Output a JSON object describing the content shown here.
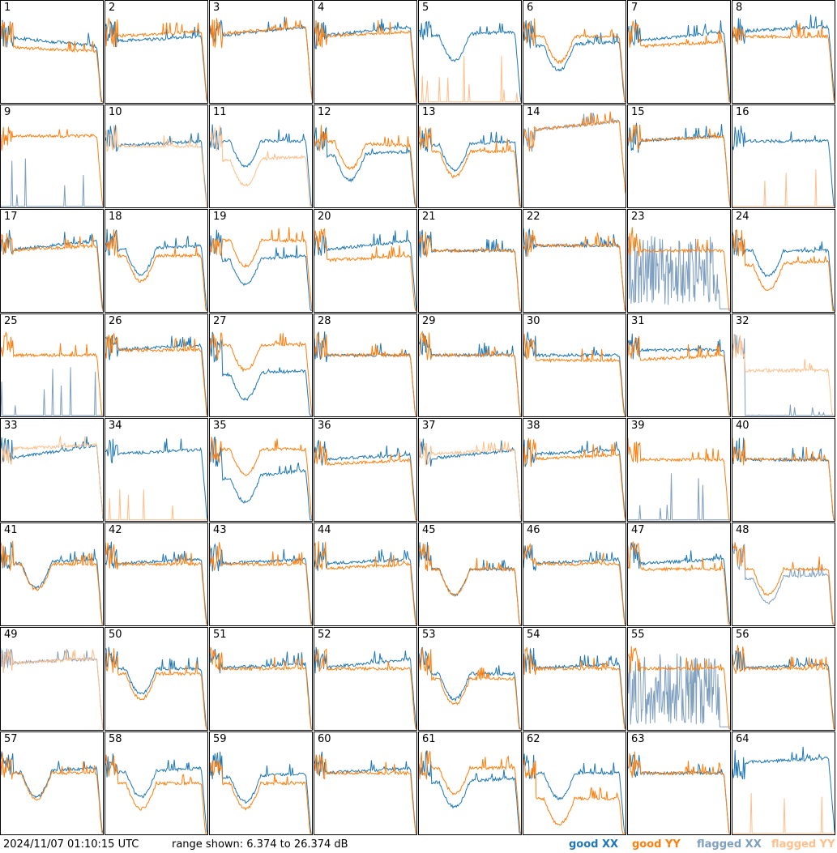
{
  "footer": {
    "timestamp": "2024/11/07 01:10:15 UTC",
    "range_text": "range shown: 6.374 to 26.374 dB"
  },
  "legend": [
    {
      "label": "good XX",
      "color": "#1f77b4"
    },
    {
      "label": "good YY",
      "color": "#ff7f0e"
    },
    {
      "label": "flagged XX",
      "color": "#7f9fbf"
    },
    {
      "label": "flagged YY",
      "color": "#ffbf8a"
    }
  ],
  "chart_data": {
    "type": "line",
    "ylim_db": [
      6.374,
      26.374
    ],
    "panels": [
      {
        "n": "1",
        "xx": "good",
        "yy": "good",
        "shape": "flat",
        "xxLevel": [
          0.35,
          0.45
        ],
        "yyLevel": [
          0.45,
          0.5
        ]
      },
      {
        "n": "2",
        "xx": "good",
        "yy": "good",
        "shape": "flat",
        "xxLevel": [
          0.4,
          0.35
        ],
        "yyLevel": [
          0.35,
          0.3
        ]
      },
      {
        "n": "3",
        "xx": "good",
        "yy": "good",
        "shape": "flat",
        "xxLevel": [
          0.35,
          0.25
        ],
        "yyLevel": [
          0.33,
          0.25
        ]
      },
      {
        "n": "4",
        "xx": "good",
        "yy": "good",
        "shape": "flat",
        "xxLevel": [
          0.35,
          0.25
        ],
        "yyLevel": [
          0.35,
          0.3
        ]
      },
      {
        "n": "5",
        "xx": "good",
        "yy": "flagged",
        "shape": "dip",
        "xxLevel": [
          0.35,
          0.3
        ],
        "yyLevel": [
          1.0,
          1.0
        ],
        "yySpike": true
      },
      {
        "n": "6",
        "xx": "good",
        "yy": "good",
        "shape": "dip",
        "xxLevel": [
          0.45,
          0.4
        ],
        "yyLevel": [
          0.35,
          0.35
        ]
      },
      {
        "n": "7",
        "xx": "good",
        "yy": "good",
        "shape": "flat",
        "xxLevel": [
          0.4,
          0.3
        ],
        "yyLevel": [
          0.45,
          0.4
        ]
      },
      {
        "n": "8",
        "xx": "good",
        "yy": "good",
        "shape": "flat",
        "xxLevel": [
          0.3,
          0.25
        ],
        "yyLevel": [
          0.35,
          0.35
        ]
      },
      {
        "n": "9",
        "xx": "flagged",
        "yy": "good",
        "shape": "flat",
        "xxLevel": [
          0.95,
          0.95
        ],
        "yyLevel": [
          0.3,
          0.3
        ],
        "xxSpike": true
      },
      {
        "n": "10",
        "xx": "good",
        "yy": "flagged",
        "shape": "flat",
        "xxLevel": [
          0.4,
          0.35
        ],
        "yyLevel": [
          0.4,
          0.4
        ]
      },
      {
        "n": "11",
        "xx": "good",
        "yy": "flagged",
        "shape": "dip",
        "xxLevel": [
          0.35,
          0.35
        ],
        "yyLevel": [
          0.55,
          0.5
        ]
      },
      {
        "n": "12",
        "xx": "good",
        "yy": "good",
        "shape": "dip",
        "xxLevel": [
          0.5,
          0.45
        ],
        "yyLevel": [
          0.35,
          0.4
        ]
      },
      {
        "n": "13",
        "xx": "good",
        "yy": "good",
        "shape": "dip",
        "xxLevel": [
          0.4,
          0.35
        ],
        "yyLevel": [
          0.45,
          0.45
        ]
      },
      {
        "n": "14",
        "xx": "flagged",
        "yy": "good",
        "shape": "flat",
        "xxLevel": [
          0.25,
          0.15
        ],
        "yyLevel": [
          0.25,
          0.15
        ]
      },
      {
        "n": "15",
        "xx": "good",
        "yy": "good",
        "shape": "flat",
        "xxLevel": [
          0.35,
          0.3
        ],
        "yyLevel": [
          0.35,
          0.3
        ]
      },
      {
        "n": "16",
        "xx": "good",
        "yy": "flagged",
        "shape": "flat",
        "xxLevel": [
          0.35,
          0.35
        ],
        "yyLevel": [
          1.0,
          1.0
        ],
        "yySpike": true
      },
      {
        "n": "17",
        "xx": "good",
        "yy": "good",
        "shape": "flat",
        "xxLevel": [
          0.4,
          0.3
        ],
        "yyLevel": [
          0.4,
          0.35
        ]
      },
      {
        "n": "18",
        "xx": "good",
        "yy": "good",
        "shape": "dip",
        "xxLevel": [
          0.4,
          0.35
        ],
        "yyLevel": [
          0.45,
          0.45
        ]
      },
      {
        "n": "19",
        "xx": "good",
        "yy": "good",
        "shape": "dip",
        "xxLevel": [
          0.5,
          0.45
        ],
        "yyLevel": [
          0.3,
          0.3
        ]
      },
      {
        "n": "20",
        "xx": "good",
        "yy": "good",
        "shape": "flat",
        "xxLevel": [
          0.4,
          0.3
        ],
        "yyLevel": [
          0.5,
          0.45
        ]
      },
      {
        "n": "21",
        "xx": "good",
        "yy": "good",
        "shape": "flat",
        "xxLevel": [
          0.4,
          0.4
        ],
        "yyLevel": [
          0.4,
          0.4
        ]
      },
      {
        "n": "22",
        "xx": "good",
        "yy": "good",
        "shape": "flat",
        "xxLevel": [
          0.35,
          0.35
        ],
        "yyLevel": [
          0.35,
          0.35
        ]
      },
      {
        "n": "23",
        "xx": "flagged",
        "yy": "good",
        "shape": "flat",
        "xxLevel": [
          0.85,
          0.9
        ],
        "yyLevel": [
          0.4,
          0.4
        ],
        "xxNoise": true
      },
      {
        "n": "24",
        "xx": "good",
        "yy": "good",
        "shape": "dip",
        "xxLevel": [
          0.4,
          0.4
        ],
        "yyLevel": [
          0.55,
          0.5
        ]
      },
      {
        "n": "25",
        "xx": "flagged",
        "yy": "good",
        "shape": "flat",
        "xxLevel": [
          1.0,
          1.0
        ],
        "yyLevel": [
          0.4,
          0.4
        ],
        "xxSpike": true
      },
      {
        "n": "26",
        "xx": "good",
        "yy": "good",
        "shape": "flat",
        "xxLevel": [
          0.35,
          0.3
        ],
        "yyLevel": [
          0.35,
          0.35
        ]
      },
      {
        "n": "27",
        "xx": "good",
        "yy": "good",
        "shape": "dip",
        "xxLevel": [
          0.6,
          0.55
        ],
        "yyLevel": [
          0.3,
          0.3
        ]
      },
      {
        "n": "28",
        "xx": "good",
        "yy": "good",
        "shape": "flat",
        "xxLevel": [
          0.4,
          0.4
        ],
        "yyLevel": [
          0.4,
          0.4
        ]
      },
      {
        "n": "29",
        "xx": "good",
        "yy": "good",
        "shape": "flat",
        "xxLevel": [
          0.4,
          0.4
        ],
        "yyLevel": [
          0.4,
          0.4
        ]
      },
      {
        "n": "30",
        "xx": "good",
        "yy": "good",
        "shape": "flat",
        "xxLevel": [
          0.4,
          0.4
        ],
        "yyLevel": [
          0.45,
          0.45
        ]
      },
      {
        "n": "31",
        "xx": "good",
        "yy": "good",
        "shape": "flat",
        "xxLevel": [
          0.35,
          0.35
        ],
        "yyLevel": [
          0.45,
          0.4
        ]
      },
      {
        "n": "32",
        "xx": "flagged",
        "yy": "flagged",
        "shape": "flat",
        "xxLevel": [
          1.0,
          1.0
        ],
        "yyLevel": [
          0.55,
          0.55
        ]
      },
      {
        "n": "33",
        "xx": "good",
        "yy": "flagged",
        "shape": "flat",
        "xxLevel": [
          0.4,
          0.25
        ],
        "yyLevel": [
          0.3,
          0.25
        ]
      },
      {
        "n": "34",
        "xx": "good",
        "yy": "flagged",
        "shape": "flat",
        "xxLevel": [
          0.35,
          0.3
        ],
        "yyLevel": [
          0.95,
          0.98
        ],
        "yySpike": true
      },
      {
        "n": "35",
        "xx": "good",
        "yy": "good",
        "shape": "dip",
        "xxLevel": [
          0.6,
          0.5
        ],
        "yyLevel": [
          0.3,
          0.3
        ]
      },
      {
        "n": "36",
        "xx": "good",
        "yy": "good",
        "shape": "flat",
        "xxLevel": [
          0.4,
          0.35
        ],
        "yyLevel": [
          0.45,
          0.4
        ]
      },
      {
        "n": "37",
        "xx": "good",
        "yy": "flagged",
        "shape": "flat",
        "xxLevel": [
          0.4,
          0.3
        ],
        "yyLevel": [
          0.35,
          0.3
        ]
      },
      {
        "n": "38",
        "xx": "good",
        "yy": "good",
        "shape": "flat",
        "xxLevel": [
          0.35,
          0.3
        ],
        "yyLevel": [
          0.4,
          0.35
        ]
      },
      {
        "n": "39",
        "xx": "flagged",
        "yy": "good",
        "shape": "flat",
        "xxLevel": [
          1.0,
          1.0
        ],
        "yyLevel": [
          0.4,
          0.4
        ],
        "xxSpike": true
      },
      {
        "n": "40",
        "xx": "good",
        "yy": "good",
        "shape": "flat",
        "xxLevel": [
          0.4,
          0.4
        ],
        "yyLevel": [
          0.4,
          0.4
        ]
      },
      {
        "n": "41",
        "xx": "good",
        "yy": "good",
        "shape": "dip",
        "xxLevel": [
          0.4,
          0.35
        ],
        "yyLevel": [
          0.4,
          0.4
        ]
      },
      {
        "n": "42",
        "xx": "good",
        "yy": "good",
        "shape": "flat",
        "xxLevel": [
          0.4,
          0.35
        ],
        "yyLevel": [
          0.4,
          0.4
        ]
      },
      {
        "n": "43",
        "xx": "good",
        "yy": "good",
        "shape": "flat",
        "xxLevel": [
          0.4,
          0.35
        ],
        "yyLevel": [
          0.4,
          0.4
        ]
      },
      {
        "n": "44",
        "xx": "good",
        "yy": "good",
        "shape": "flat",
        "xxLevel": [
          0.4,
          0.35
        ],
        "yyLevel": [
          0.45,
          0.4
        ]
      },
      {
        "n": "45",
        "xx": "good",
        "yy": "good",
        "shape": "dip",
        "xxLevel": [
          0.45,
          0.45
        ],
        "yyLevel": [
          0.45,
          0.45
        ]
      },
      {
        "n": "46",
        "xx": "good",
        "yy": "good",
        "shape": "flat",
        "xxLevel": [
          0.4,
          0.35
        ],
        "yyLevel": [
          0.4,
          0.4
        ]
      },
      {
        "n": "47",
        "xx": "good",
        "yy": "good",
        "shape": "flat",
        "xxLevel": [
          0.4,
          0.35
        ],
        "yyLevel": [
          0.45,
          0.45
        ]
      },
      {
        "n": "48",
        "xx": "flagged",
        "yy": "good",
        "shape": "dip",
        "xxLevel": [
          0.55,
          0.5
        ],
        "yyLevel": [
          0.45,
          0.45
        ]
      },
      {
        "n": "49",
        "xx": "flagged",
        "yy": "flagged",
        "shape": "flat",
        "xxLevel": [
          0.35,
          0.3
        ],
        "yyLevel": [
          0.35,
          0.3
        ]
      },
      {
        "n": "50",
        "xx": "good",
        "yy": "good",
        "shape": "dip",
        "xxLevel": [
          0.4,
          0.4
        ],
        "yyLevel": [
          0.45,
          0.45
        ]
      },
      {
        "n": "51",
        "xx": "good",
        "yy": "good",
        "shape": "flat",
        "xxLevel": [
          0.4,
          0.35
        ],
        "yyLevel": [
          0.4,
          0.4
        ]
      },
      {
        "n": "52",
        "xx": "good",
        "yy": "good",
        "shape": "flat",
        "xxLevel": [
          0.4,
          0.3
        ],
        "yyLevel": [
          0.4,
          0.4
        ]
      },
      {
        "n": "53",
        "xx": "good",
        "yy": "good",
        "shape": "dip",
        "xxLevel": [
          0.45,
          0.45
        ],
        "yyLevel": [
          0.5,
          0.5
        ]
      },
      {
        "n": "54",
        "xx": "good",
        "yy": "good",
        "shape": "flat",
        "xxLevel": [
          0.4,
          0.35
        ],
        "yyLevel": [
          0.4,
          0.4
        ]
      },
      {
        "n": "55",
        "xx": "flagged",
        "yy": "good",
        "shape": "flat",
        "xxLevel": [
          0.9,
          0.92
        ],
        "yyLevel": [
          0.4,
          0.4
        ],
        "xxNoise": true
      },
      {
        "n": "56",
        "xx": "good",
        "yy": "good",
        "shape": "flat",
        "xxLevel": [
          0.4,
          0.35
        ],
        "yyLevel": [
          0.4,
          0.4
        ]
      },
      {
        "n": "57",
        "xx": "good",
        "yy": "good",
        "shape": "dip",
        "xxLevel": [
          0.4,
          0.35
        ],
        "yyLevel": [
          0.4,
          0.4
        ]
      },
      {
        "n": "58",
        "xx": "good",
        "yy": "good",
        "shape": "dip",
        "xxLevel": [
          0.4,
          0.35
        ],
        "yyLevel": [
          0.5,
          0.5
        ]
      },
      {
        "n": "59",
        "xx": "good",
        "yy": "good",
        "shape": "dip",
        "xxLevel": [
          0.45,
          0.4
        ],
        "yyLevel": [
          0.5,
          0.5
        ]
      },
      {
        "n": "60",
        "xx": "good",
        "yy": "good",
        "shape": "flat",
        "xxLevel": [
          0.4,
          0.35
        ],
        "yyLevel": [
          0.4,
          0.4
        ]
      },
      {
        "n": "61",
        "xx": "good",
        "yy": "good",
        "shape": "dip",
        "xxLevel": [
          0.5,
          0.45
        ],
        "yyLevel": [
          0.35,
          0.35
        ]
      },
      {
        "n": "62",
        "xx": "good",
        "yy": "good",
        "shape": "dip",
        "xxLevel": [
          0.4,
          0.4
        ],
        "yyLevel": [
          0.65,
          0.65
        ]
      },
      {
        "n": "63",
        "xx": "good",
        "yy": "good",
        "shape": "flat",
        "xxLevel": [
          0.4,
          0.4
        ],
        "yyLevel": [
          0.4,
          0.4
        ]
      },
      {
        "n": "64",
        "xx": "good",
        "yy": "flagged",
        "shape": "flat",
        "xxLevel": [
          0.3,
          0.25
        ],
        "yyLevel": [
          1.0,
          1.0
        ],
        "yySpike": true
      }
    ]
  }
}
